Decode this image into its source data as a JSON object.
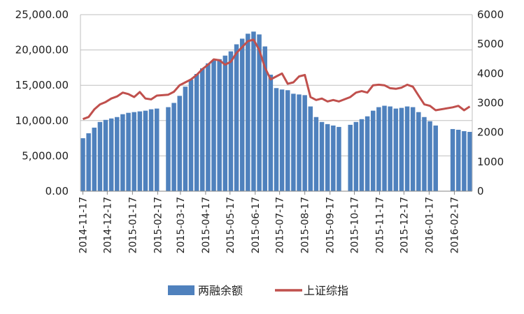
{
  "chart_data": {
    "type": "bar+line",
    "title": "",
    "legend_position": "bottom",
    "grid": true,
    "colors": {
      "bars": "#4F81BD",
      "line": "#C0504D",
      "grid": "#BFBFBF"
    },
    "y_left": {
      "min": 0,
      "max": 25000,
      "ticks": [
        0,
        5000,
        10000,
        15000,
        20000,
        25000
      ],
      "tick_labels": [
        "0.00",
        "5,000.00",
        "10,000.00",
        "15,000.00",
        "20,000.00",
        "25,000.00"
      ]
    },
    "y_right": {
      "min": 0,
      "max": 6000,
      "ticks": [
        0,
        1000,
        2000,
        3000,
        4000,
        5000,
        6000
      ],
      "tick_labels": [
        "0",
        "1000",
        "2000",
        "3000",
        "4000",
        "5000",
        "6000"
      ]
    },
    "x_tick_labels": [
      "2014-11-17",
      "2014-12-17",
      "2015-01-17",
      "2015-02-17",
      "2015-03-17",
      "2015-04-17",
      "2015-05-17",
      "2015-06-17",
      "2015-07-17",
      "2015-08-17",
      "2015-09-17",
      "2015-10-17",
      "2015-11-17",
      "2015-12-17",
      "2016-01-17",
      "2016-02-17"
    ],
    "series": [
      {
        "name": "两融余额",
        "type": "bar",
        "axis": "left",
        "points": [
          [
            "2014-11-17",
            7500
          ],
          [
            "2014-11-24",
            8200
          ],
          [
            "2014-12-01",
            9000
          ],
          [
            "2014-12-08",
            9800
          ],
          [
            "2014-12-15",
            10100
          ],
          [
            "2014-12-22",
            10300
          ],
          [
            "2014-12-29",
            10500
          ],
          [
            "2015-01-05",
            10900
          ],
          [
            "2015-01-12",
            11100
          ],
          [
            "2015-01-19",
            11200
          ],
          [
            "2015-01-26",
            11300
          ],
          [
            "2015-02-02",
            11400
          ],
          [
            "2015-02-09",
            11600
          ],
          [
            "2015-02-16",
            11700
          ],
          [
            "2015-03-02",
            11900
          ],
          [
            "2015-03-09",
            12500
          ],
          [
            "2015-03-16",
            13500
          ],
          [
            "2015-03-23",
            14800
          ],
          [
            "2015-03-30",
            15800
          ],
          [
            "2015-04-06",
            16600
          ],
          [
            "2015-04-13",
            17400
          ],
          [
            "2015-04-20",
            18100
          ],
          [
            "2015-04-27",
            18500
          ],
          [
            "2015-05-04",
            18700
          ],
          [
            "2015-05-11",
            19200
          ],
          [
            "2015-05-18",
            19800
          ],
          [
            "2015-05-25",
            20800
          ],
          [
            "2015-06-01",
            21600
          ],
          [
            "2015-06-08",
            22300
          ],
          [
            "2015-06-15",
            22600
          ],
          [
            "2015-06-22",
            22200
          ],
          [
            "2015-06-29",
            20500
          ],
          [
            "2015-07-06",
            16500
          ],
          [
            "2015-07-13",
            14600
          ],
          [
            "2015-07-20",
            14400
          ],
          [
            "2015-07-27",
            14300
          ],
          [
            "2015-08-03",
            13800
          ],
          [
            "2015-08-10",
            13700
          ],
          [
            "2015-08-17",
            13600
          ],
          [
            "2015-08-24",
            12000
          ],
          [
            "2015-08-31",
            10500
          ],
          [
            "2015-09-07",
            9800
          ],
          [
            "2015-09-14",
            9500
          ],
          [
            "2015-09-21",
            9300
          ],
          [
            "2015-09-28",
            9100
          ],
          [
            "2015-10-12",
            9400
          ],
          [
            "2015-10-19",
            9800
          ],
          [
            "2015-10-26",
            10200
          ],
          [
            "2015-11-02",
            10600
          ],
          [
            "2015-11-09",
            11400
          ],
          [
            "2015-11-16",
            11900
          ],
          [
            "2015-11-23",
            12100
          ],
          [
            "2015-11-30",
            12000
          ],
          [
            "2015-12-07",
            11700
          ],
          [
            "2015-12-14",
            11800
          ],
          [
            "2015-12-21",
            12000
          ],
          [
            "2015-12-28",
            11900
          ],
          [
            "2016-01-04",
            11200
          ],
          [
            "2016-01-11",
            10500
          ],
          [
            "2016-01-18",
            9900
          ],
          [
            "2016-01-25",
            9300
          ],
          [
            "2016-02-15",
            8800
          ],
          [
            "2016-02-22",
            8700
          ],
          [
            "2016-02-29",
            8500
          ],
          [
            "2016-03-07",
            8400
          ]
        ]
      },
      {
        "name": "上证综指",
        "type": "line",
        "axis": "right",
        "points": [
          [
            "2014-11-17",
            2450
          ],
          [
            "2014-11-24",
            2520
          ],
          [
            "2014-12-01",
            2780
          ],
          [
            "2014-12-08",
            2950
          ],
          [
            "2014-12-15",
            3030
          ],
          [
            "2014-12-22",
            3150
          ],
          [
            "2014-12-29",
            3220
          ],
          [
            "2015-01-05",
            3350
          ],
          [
            "2015-01-12",
            3300
          ],
          [
            "2015-01-19",
            3200
          ],
          [
            "2015-01-26",
            3370
          ],
          [
            "2015-02-02",
            3150
          ],
          [
            "2015-02-09",
            3120
          ],
          [
            "2015-02-16",
            3250
          ],
          [
            "2015-03-02",
            3280
          ],
          [
            "2015-03-09",
            3380
          ],
          [
            "2015-03-16",
            3600
          ],
          [
            "2015-03-23",
            3700
          ],
          [
            "2015-03-30",
            3800
          ],
          [
            "2015-04-06",
            3950
          ],
          [
            "2015-04-13",
            4150
          ],
          [
            "2015-04-20",
            4300
          ],
          [
            "2015-04-27",
            4480
          ],
          [
            "2015-05-04",
            4450
          ],
          [
            "2015-05-11",
            4300
          ],
          [
            "2015-05-18",
            4400
          ],
          [
            "2015-05-25",
            4700
          ],
          [
            "2015-06-01",
            4900
          ],
          [
            "2015-06-08",
            5100
          ],
          [
            "2015-06-15",
            5150
          ],
          [
            "2015-06-22",
            4800
          ],
          [
            "2015-06-29",
            4200
          ],
          [
            "2015-07-06",
            3800
          ],
          [
            "2015-07-13",
            3900
          ],
          [
            "2015-07-20",
            4000
          ],
          [
            "2015-07-27",
            3650
          ],
          [
            "2015-08-03",
            3700
          ],
          [
            "2015-08-10",
            3900
          ],
          [
            "2015-08-17",
            3950
          ],
          [
            "2015-08-24",
            3200
          ],
          [
            "2015-08-31",
            3100
          ],
          [
            "2015-09-07",
            3150
          ],
          [
            "2015-09-14",
            3050
          ],
          [
            "2015-09-21",
            3100
          ],
          [
            "2015-09-28",
            3050
          ],
          [
            "2015-10-12",
            3200
          ],
          [
            "2015-10-19",
            3350
          ],
          [
            "2015-10-26",
            3400
          ],
          [
            "2015-11-02",
            3350
          ],
          [
            "2015-11-09",
            3600
          ],
          [
            "2015-11-16",
            3620
          ],
          [
            "2015-11-23",
            3600
          ],
          [
            "2015-11-30",
            3500
          ],
          [
            "2015-12-07",
            3480
          ],
          [
            "2015-12-14",
            3520
          ],
          [
            "2015-12-21",
            3620
          ],
          [
            "2015-12-28",
            3550
          ],
          [
            "2016-01-04",
            3250
          ],
          [
            "2016-01-11",
            2950
          ],
          [
            "2016-01-18",
            2900
          ],
          [
            "2016-01-25",
            2750
          ],
          [
            "2016-02-15",
            2850
          ],
          [
            "2016-02-22",
            2900
          ],
          [
            "2016-02-29",
            2750
          ],
          [
            "2016-03-07",
            2880
          ]
        ]
      }
    ]
  }
}
